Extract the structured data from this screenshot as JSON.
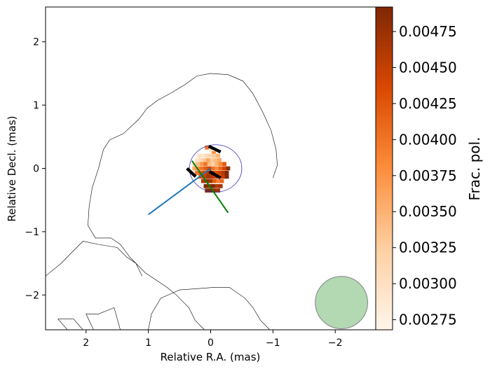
{
  "chart_data": {
    "type": "heatmap",
    "title": "",
    "xlabel": "Relative R.A. (mas)",
    "ylabel": "Relative Decl. (mas)",
    "xlim": [
      2.65,
      -2.65
    ],
    "ylim": [
      -2.55,
      2.55
    ],
    "x_ticks": [
      2,
      1,
      0,
      -1,
      -2
    ],
    "x_tick_labels": [
      "2",
      "1",
      "0",
      "−1",
      "−2"
    ],
    "y_ticks": [
      2,
      1,
      0,
      -1,
      -2
    ],
    "y_tick_labels": [
      "2",
      "1",
      "0",
      "−1",
      "−2"
    ],
    "grid": false,
    "colormap": "Oranges",
    "colorbar": {
      "label": "Frac. pol.",
      "range": [
        0.00268,
        0.00492
      ],
      "ticks": [
        0.00275,
        0.003,
        0.00325,
        0.0035,
        0.00375,
        0.004,
        0.00425,
        0.0045,
        0.00475
      ],
      "tick_labels": [
        "0.00275",
        "0.00300",
        "0.00325",
        "0.00350",
        "0.00375",
        "0.00400",
        "0.00425",
        "0.00450",
        "0.00475"
      ]
    },
    "pixel_size": 0.065,
    "pixels": [
      [
        0.06,
        0.33,
        0.004
      ],
      [
        0.0,
        0.28,
        0.0029
      ],
      [
        -0.05,
        0.24,
        0.0038
      ],
      [
        0.18,
        0.2,
        0.003
      ],
      [
        0.12,
        0.2,
        0.0029
      ],
      [
        0.06,
        0.2,
        0.0031
      ],
      [
        0.0,
        0.2,
        0.0032
      ],
      [
        -0.06,
        0.2,
        0.0033
      ],
      [
        -0.12,
        0.2,
        0.0035
      ],
      [
        0.22,
        0.13,
        0.0029
      ],
      [
        0.16,
        0.13,
        0.0031
      ],
      [
        0.1,
        0.13,
        0.0033
      ],
      [
        0.04,
        0.13,
        0.0036
      ],
      [
        -0.02,
        0.13,
        0.0033
      ],
      [
        -0.08,
        0.13,
        0.0034
      ],
      [
        -0.14,
        0.13,
        0.0036
      ],
      [
        0.26,
        0.07,
        0.0032
      ],
      [
        0.2,
        0.07,
        0.0034
      ],
      [
        0.14,
        0.07,
        0.0037
      ],
      [
        0.08,
        0.07,
        0.004
      ],
      [
        0.02,
        0.07,
        0.0034
      ],
      [
        -0.04,
        0.07,
        0.0032
      ],
      [
        -0.1,
        0.07,
        0.0035
      ],
      [
        -0.16,
        0.07,
        0.0038
      ],
      [
        -0.22,
        0.07,
        0.0042
      ],
      [
        0.26,
        0.0,
        0.0036
      ],
      [
        0.2,
        0.0,
        0.0038
      ],
      [
        0.14,
        0.0,
        0.004
      ],
      [
        0.08,
        0.0,
        0.0042
      ],
      [
        0.02,
        0.0,
        0.0044
      ],
      [
        -0.04,
        0.0,
        0.004
      ],
      [
        -0.1,
        0.0,
        0.0038
      ],
      [
        -0.16,
        0.0,
        0.0041
      ],
      [
        -0.22,
        0.0,
        0.0044
      ],
      [
        -0.28,
        0.0,
        0.0048
      ],
      [
        0.22,
        -0.07,
        0.004
      ],
      [
        0.16,
        -0.07,
        0.0042
      ],
      [
        0.1,
        -0.07,
        0.0044
      ],
      [
        0.04,
        -0.07,
        0.0046
      ],
      [
        -0.02,
        -0.07,
        0.0045
      ],
      [
        -0.08,
        -0.07,
        0.0043
      ],
      [
        -0.14,
        -0.07,
        0.0044
      ],
      [
        -0.2,
        -0.07,
        0.0046
      ],
      [
        -0.26,
        -0.07,
        0.0049
      ],
      [
        0.16,
        -0.13,
        0.0043
      ],
      [
        0.1,
        -0.13,
        0.0045
      ],
      [
        0.04,
        -0.13,
        0.0047
      ],
      [
        -0.02,
        -0.13,
        0.0046
      ],
      [
        -0.08,
        -0.13,
        0.0044
      ],
      [
        -0.14,
        -0.13,
        0.0042
      ],
      [
        -0.2,
        -0.13,
        0.0045
      ],
      [
        -0.26,
        -0.13,
        0.0049
      ],
      [
        0.12,
        -0.2,
        0.0046
      ],
      [
        0.06,
        -0.2,
        0.0048
      ],
      [
        0.0,
        -0.2,
        0.0047
      ],
      [
        -0.06,
        -0.2,
        0.0042
      ],
      [
        -0.12,
        -0.2,
        0.0039
      ],
      [
        -0.18,
        -0.2,
        0.0041
      ],
      [
        0.08,
        -0.28,
        0.0049
      ],
      [
        0.02,
        -0.28,
        0.0048
      ],
      [
        -0.04,
        -0.28,
        0.0049
      ],
      [
        -0.1,
        -0.28,
        0.0046
      ],
      [
        -0.16,
        -0.28,
        0.0047
      ],
      [
        0.06,
        -0.35,
        0.0049
      ],
      [
        0.0,
        -0.35,
        0.0049
      ],
      [
        -0.06,
        -0.35,
        0.0048
      ],
      [
        -0.12,
        -0.35,
        0.0047
      ]
    ],
    "outer_contour": [
      [
        -1.0,
        -0.15
      ],
      [
        -1.07,
        0.05
      ],
      [
        -1.05,
        0.3
      ],
      [
        -0.97,
        0.6
      ],
      [
        -0.83,
        0.9
      ],
      [
        -0.68,
        1.18
      ],
      [
        -0.52,
        1.38
      ],
      [
        -0.28,
        1.48
      ],
      [
        0.0,
        1.5
      ],
      [
        0.22,
        1.46
      ],
      [
        0.42,
        1.32
      ],
      [
        0.62,
        1.2
      ],
      [
        0.86,
        1.07
      ],
      [
        1.02,
        0.95
      ],
      [
        1.15,
        0.78
      ],
      [
        1.4,
        0.55
      ],
      [
        1.62,
        0.45
      ],
      [
        1.72,
        0.3
      ],
      [
        1.8,
        0.0
      ],
      [
        1.9,
        -0.3
      ],
      [
        1.95,
        -0.6
      ],
      [
        1.97,
        -0.9
      ],
      [
        1.85,
        -1.1
      ],
      [
        1.6,
        -1.1
      ],
      [
        1.45,
        -1.2
      ],
      [
        1.3,
        -1.4
      ],
      [
        1.05,
        -1.65
      ],
      [
        0.7,
        -1.88
      ],
      [
        0.55,
        -2.0
      ],
      [
        0.35,
        -2.2
      ],
      [
        0.25,
        -2.4
      ],
      [
        0.1,
        -2.55
      ]
    ],
    "lower_contours": [
      [
        [
          1.0,
          -2.55
        ],
        [
          0.95,
          -2.3
        ],
        [
          0.8,
          -2.05
        ],
        [
          0.5,
          -1.92
        ],
        [
          0.2,
          -1.9
        ],
        [
          -0.05,
          -1.88
        ],
        [
          -0.3,
          -1.88
        ],
        [
          -0.55,
          -2.05
        ],
        [
          -0.68,
          -2.2
        ],
        [
          -0.8,
          -2.4
        ],
        [
          -0.95,
          -2.55
        ]
      ],
      [
        [
          2.65,
          -1.7
        ],
        [
          2.4,
          -1.5
        ],
        [
          2.25,
          -1.35
        ],
        [
          2.05,
          -1.15
        ],
        [
          1.8,
          -1.2
        ],
        [
          1.5,
          -1.25
        ],
        [
          1.35,
          -1.4
        ],
        [
          1.2,
          -1.5
        ],
        [
          1.1,
          -1.7
        ]
      ],
      [
        [
          1.88,
          -2.55
        ],
        [
          2.0,
          -2.3
        ],
        [
          1.8,
          -2.3
        ],
        [
          1.55,
          -2.2
        ],
        [
          1.45,
          -2.55
        ]
      ],
      [
        [
          2.3,
          -2.55
        ],
        [
          2.45,
          -2.38
        ],
        [
          2.2,
          -2.38
        ],
        [
          2.05,
          -2.55
        ]
      ]
    ],
    "core_ellipse": {
      "cx": -0.08,
      "cy": 0.0,
      "rx": 0.42,
      "ry": 0.38
    },
    "evpa_vectors": [
      {
        "x1": 0.03,
        "y1": 0.35,
        "x2": -0.16,
        "y2": 0.26
      },
      {
        "x1": 0.38,
        "y1": 0.0,
        "x2": 0.24,
        "y2": -0.13
      },
      {
        "x1": 0.02,
        "y1": -0.05,
        "x2": -0.16,
        "y2": -0.15
      }
    ],
    "blue_line": [
      [
        1.0,
        -0.73
      ],
      [
        0.0,
        0.0
      ]
    ],
    "green_line": [
      [
        0.3,
        0.12
      ],
      [
        -0.28,
        -0.7
      ]
    ],
    "beam": {
      "x": -2.1,
      "y": -2.12,
      "r": 0.42
    },
    "colors": {
      "contour": "#000000",
      "ellipse": "#3c2fb2",
      "evpa": "#000000",
      "blue_line": "#1f77b4",
      "green_line": "#008000",
      "beam_fill": "#b3d9b3",
      "beam_edge": "#808080"
    }
  }
}
